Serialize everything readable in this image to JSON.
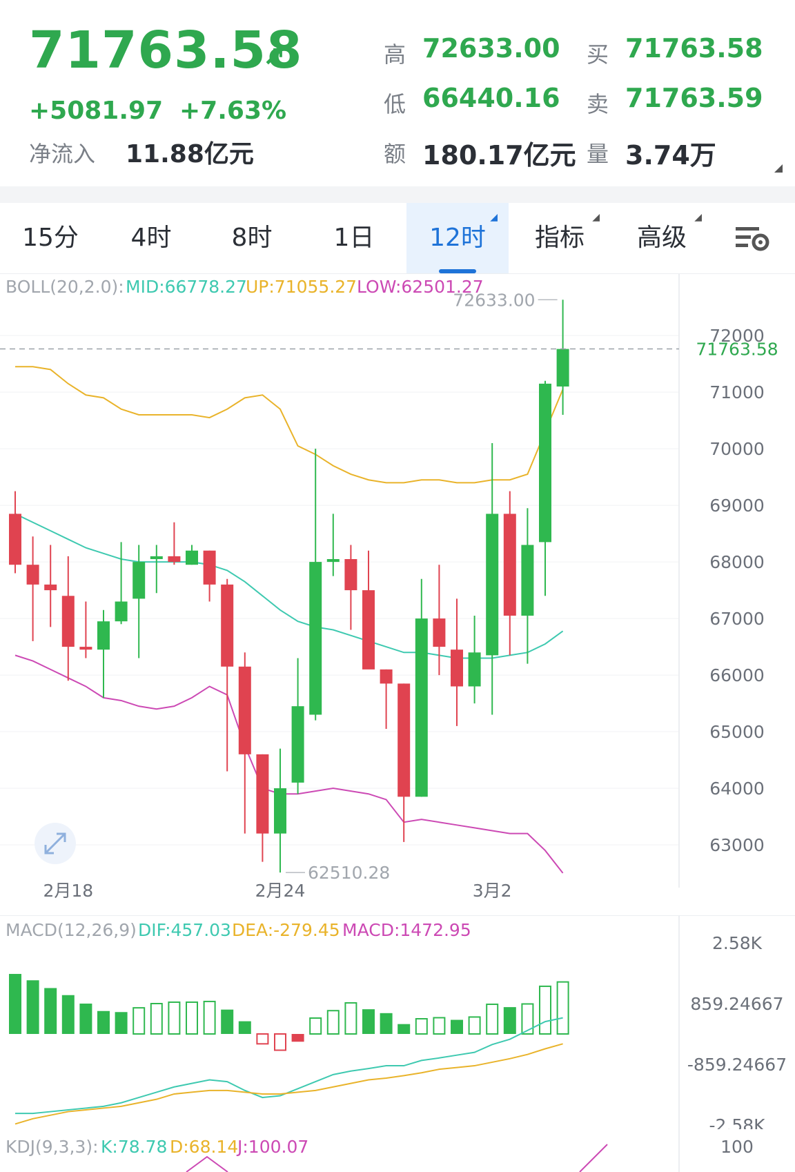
{
  "header": {
    "price": "71763.58",
    "price_arrow": "↗",
    "change": "+5081.97",
    "change_pct": "+7.63%",
    "netflow_label": "净流入",
    "netflow_value": "11.88亿元",
    "high_label": "高",
    "high_value": "72633.00",
    "low_label": "低",
    "low_value": "66440.16",
    "amount_label": "额",
    "amount_value": "180.17亿元",
    "buy_label": "买",
    "buy_value": "71763.58",
    "sell_label": "卖",
    "sell_value": "71763.59",
    "volume_label": "量",
    "volume_value": "3.74万"
  },
  "tabs": [
    {
      "label": "15分",
      "active": false
    },
    {
      "label": "4时",
      "active": false
    },
    {
      "label": "8时",
      "active": false
    },
    {
      "label": "1日",
      "active": false
    },
    {
      "label": "12时",
      "active": true
    },
    {
      "label": "指标",
      "active": false
    },
    {
      "label": "高级",
      "active": false
    }
  ],
  "boll": {
    "name": "BOLL(20,2.0):",
    "mid": "MID:66778.27",
    "up": "UP:71055.27",
    "low": "LOW:62501.27"
  },
  "macd": {
    "name": "MACD(12,26,9)",
    "dif": "DIF:457.03",
    "dea": "DEA:-279.45",
    "macd": "MACD:1472.95"
  },
  "kdj": {
    "name": "KDJ(9,3,3):",
    "k": "K:78.78",
    "d": "D:68.14",
    "j": "J:100.07"
  },
  "colors": {
    "up": "#2fb84f",
    "down": "#e04350",
    "mid": "#3ec9b0",
    "upper": "#e9b32a",
    "lower": "#cc49b4",
    "accent": "#1e73d8"
  },
  "chart_data": {
    "type": "candlestick",
    "x_labels": [
      "2月18",
      "2月24",
      "3月2"
    ],
    "y_ticks": [
      "72000",
      "71000",
      "70000",
      "69000",
      "68000",
      "67000",
      "66000",
      "65000",
      "64000",
      "63000"
    ],
    "ylim": [
      62000,
      73100
    ],
    "high_marker": "72633.00",
    "low_marker": "62510.28",
    "last_price_label": "71763.58",
    "candles": [
      {
        "o": 68850,
        "h": 69250,
        "l": 67800,
        "c": 67950
      },
      {
        "o": 67950,
        "h": 68450,
        "l": 66600,
        "c": 67600
      },
      {
        "o": 67600,
        "h": 68300,
        "l": 66850,
        "c": 67500
      },
      {
        "o": 67400,
        "h": 68100,
        "l": 65900,
        "c": 66500
      },
      {
        "o": 66500,
        "h": 67300,
        "l": 66300,
        "c": 66450
      },
      {
        "o": 66450,
        "h": 67150,
        "l": 65600,
        "c": 66950
      },
      {
        "o": 66950,
        "h": 68350,
        "l": 66900,
        "c": 67300
      },
      {
        "o": 67350,
        "h": 68300,
        "l": 66300,
        "c": 68000
      },
      {
        "o": 68050,
        "h": 68300,
        "l": 67450,
        "c": 68100
      },
      {
        "o": 68100,
        "h": 68700,
        "l": 67950,
        "c": 68000
      },
      {
        "o": 67950,
        "h": 68300,
        "l": 67950,
        "c": 68200
      },
      {
        "o": 68200,
        "h": 68200,
        "l": 67300,
        "c": 67600
      },
      {
        "o": 67600,
        "h": 67700,
        "l": 64300,
        "c": 66150
      },
      {
        "o": 66150,
        "h": 66400,
        "l": 63200,
        "c": 64600
      },
      {
        "o": 64600,
        "h": 64600,
        "l": 62700,
        "c": 63200
      },
      {
        "o": 63200,
        "h": 64700,
        "l": 62510.28,
        "c": 64000
      },
      {
        "o": 64100,
        "h": 66300,
        "l": 63900,
        "c": 65450
      },
      {
        "o": 65300,
        "h": 70000,
        "l": 65200,
        "c": 68000
      },
      {
        "o": 68000,
        "h": 68850,
        "l": 67750,
        "c": 68050
      },
      {
        "o": 68050,
        "h": 68300,
        "l": 66800,
        "c": 67500
      },
      {
        "o": 67500,
        "h": 68200,
        "l": 66150,
        "c": 66100
      },
      {
        "o": 66100,
        "h": 66100,
        "l": 65050,
        "c": 65850
      },
      {
        "o": 65850,
        "h": 65850,
        "l": 63050,
        "c": 63850
      },
      {
        "o": 63850,
        "h": 67700,
        "l": 63850,
        "c": 67000
      },
      {
        "o": 67000,
        "h": 67950,
        "l": 66000,
        "c": 66500
      },
      {
        "o": 66450,
        "h": 67350,
        "l": 65100,
        "c": 65800
      },
      {
        "o": 65800,
        "h": 67050,
        "l": 65500,
        "c": 66400
      },
      {
        "o": 66350,
        "h": 70100,
        "l": 65300,
        "c": 68850
      },
      {
        "o": 68850,
        "h": 69250,
        "l": 66350,
        "c": 67050
      },
      {
        "o": 67050,
        "h": 68950,
        "l": 66200,
        "c": 68300
      },
      {
        "o": 68350,
        "h": 71200,
        "l": 67400,
        "c": 71150
      },
      {
        "o": 71100,
        "h": 72633,
        "l": 70600,
        "c": 71763.58
      }
    ],
    "boll_upper": [
      71450,
      71450,
      71400,
      71150,
      70950,
      70900,
      70700,
      70600,
      70600,
      70600,
      70600,
      70550,
      70700,
      70900,
      70950,
      70700,
      70050,
      69900,
      69700,
      69550,
      69450,
      69400,
      69400,
      69450,
      69450,
      69400,
      69400,
      69450,
      69450,
      69550,
      70300,
      71050
    ],
    "boll_mid": [
      68850,
      68700,
      68550,
      68400,
      68250,
      68150,
      68050,
      68000,
      68000,
      68000,
      68000,
      67950,
      67850,
      67650,
      67400,
      67150,
      66950,
      66850,
      66800,
      66700,
      66600,
      66500,
      66400,
      66400,
      66350,
      66300,
      66300,
      66300,
      66350,
      66400,
      66550,
      66778.27
    ],
    "boll_lower": [
      66350,
      66250,
      66100,
      65950,
      65800,
      65600,
      65550,
      65450,
      65400,
      65450,
      65600,
      65800,
      65650,
      64750,
      64000,
      63900,
      63900,
      63950,
      64000,
      63950,
      63900,
      63800,
      63400,
      63450,
      63400,
      63350,
      63300,
      63250,
      63200,
      63200,
      62900,
      62501.27
    ],
    "macd_ticks": [
      "2.58K",
      "859.24667",
      "-859.24667",
      "-2.58K"
    ],
    "macd_hist": [
      1700,
      1520,
      1300,
      1100,
      860,
      650,
      620,
      740,
      860,
      900,
      900,
      920,
      690,
      360,
      -280,
      -460,
      -220,
      450,
      660,
      880,
      700,
      590,
      280,
      430,
      460,
      400,
      480,
      840,
      760,
      850,
      1350,
      1472.95
    ],
    "macd_dif": [
      -2250,
      -2250,
      -2200,
      -2150,
      -2100,
      -2050,
      -1950,
      -1800,
      -1650,
      -1500,
      -1400,
      -1300,
      -1350,
      -1600,
      -1800,
      -1750,
      -1550,
      -1350,
      -1150,
      -1050,
      -980,
      -900,
      -900,
      -750,
      -680,
      -600,
      -520,
      -300,
      -150,
      100,
      350,
      457.03
    ],
    "macd_dea": [
      -2550,
      -2400,
      -2300,
      -2200,
      -2150,
      -2100,
      -2050,
      -1950,
      -1850,
      -1700,
      -1650,
      -1600,
      -1600,
      -1650,
      -1700,
      -1700,
      -1650,
      -1600,
      -1500,
      -1400,
      -1300,
      -1250,
      -1180,
      -1100,
      -1000,
      -950,
      -900,
      -800,
      -700,
      -580,
      -420,
      -279.45
    ],
    "kdj_ticks": [
      "100"
    ]
  }
}
